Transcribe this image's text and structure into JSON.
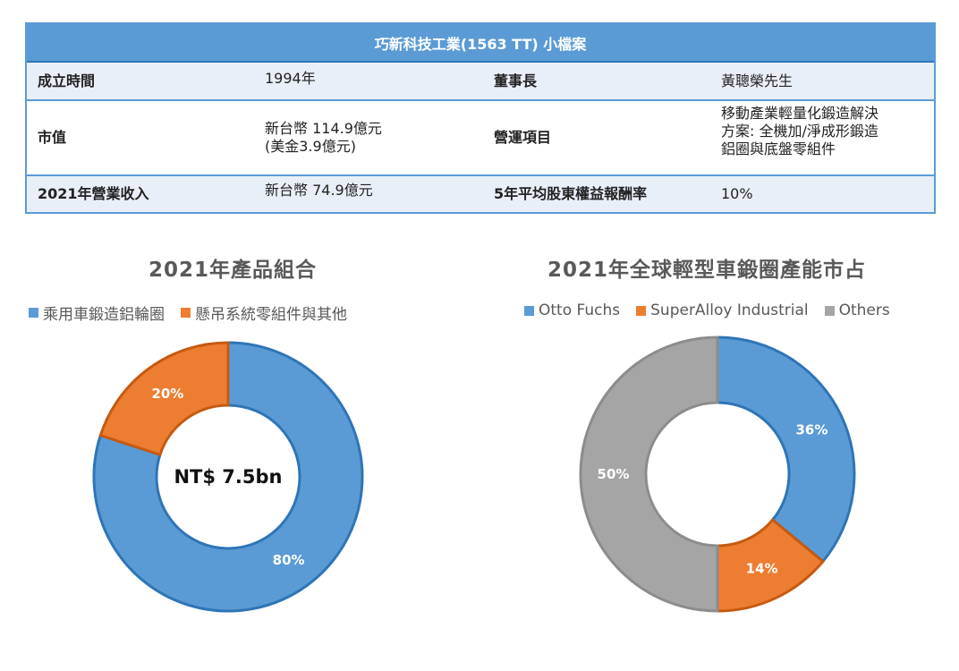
{
  "profile": {
    "title": "巧新科技工業(1563 TT) 小檔案",
    "rows": [
      {
        "label1": "成立時間",
        "value1": [
          "1994年"
        ],
        "label2": "董事長",
        "value2": [
          "黃聰榮先生"
        ]
      },
      {
        "label1": "市值",
        "value1": [
          "新台幣 114.9億元",
          "(美金3.9億元)"
        ],
        "label2": "營運項目",
        "value2": [
          "移動產業輕量化鍛造解決",
          "方案: 全機加/淨成形鍛造",
          "鋁圈與底盤零組件"
        ]
      },
      {
        "label1": "2021年營業收入",
        "value1": [
          "新台幣 74.9億元"
        ],
        "label2": "5年平均股東權益報酬率",
        "value2": [
          "10%"
        ]
      }
    ]
  },
  "chart_data": [
    {
      "type": "donut",
      "title": "2021年產品組合",
      "center_label": "NT$ 7.5bn",
      "legend_position": "top",
      "series": [
        {
          "name": "乘用車鍛造鋁輪圈",
          "value": 80,
          "label": "80%",
          "color": "#5b9bd5"
        },
        {
          "name": "懸吊系統零組件與其他",
          "value": 20,
          "label": "20%",
          "color": "#ed7d31"
        }
      ]
    },
    {
      "type": "donut",
      "title": "2021年全球輕型車鍛圈產能市占",
      "legend_position": "top",
      "series": [
        {
          "name": "Otto Fuchs",
          "value": 36,
          "label": "36%",
          "color": "#5b9bd5"
        },
        {
          "name": "SuperAlloy Industrial",
          "value": 14,
          "label": "14%",
          "color": "#ed7d31"
        },
        {
          "name": "Others",
          "value": 50,
          "label": "50%",
          "color": "#a5a5a5"
        }
      ]
    }
  ]
}
